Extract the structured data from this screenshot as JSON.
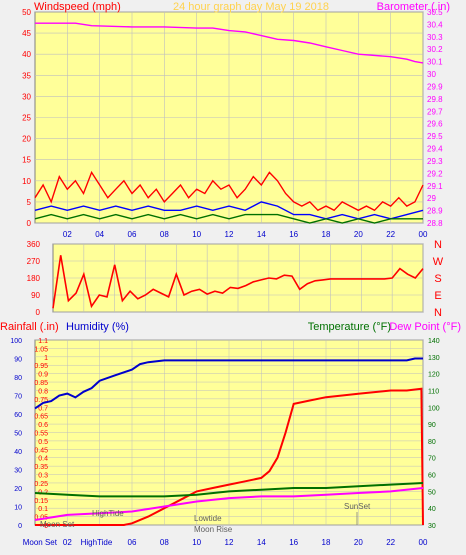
{
  "title": "24 hour graph day   May 19 2018",
  "colors": {
    "frame_bg": "#f0f0f0",
    "plot_bg": "#ffff99",
    "grid": "#bfbfbf",
    "wind_label": "#ff0000",
    "baro_label": "#ff00ff",
    "title": "#ffd24d",
    "humidity_label": "#0000cc",
    "temp_label": "#007000",
    "dew_label": "#ff00ff",
    "bearing_label": "#ff0000"
  },
  "chart_data": [
    {
      "type": "line",
      "name": "wind-barometer",
      "title": "24 hour graph day   May 19 2018",
      "ylabel": "Windspeed (mph)",
      "y2label": "Barometer (.in)",
      "ylim": [
        0,
        50
      ],
      "yticks": [
        "0",
        "5",
        "10",
        "15",
        "20",
        "25",
        "30",
        "35",
        "40",
        "45",
        "50"
      ],
      "y2lim": [
        28.8,
        30.5
      ],
      "y2ticks": [
        "28.8",
        "28.9",
        "29",
        "29.1",
        "29.2",
        "29.3",
        "29.4",
        "29.5",
        "29.6",
        "29.7",
        "29.8",
        "29.9",
        "30",
        "30.1",
        "30.2",
        "30.3",
        "30.4",
        "30.5"
      ],
      "xticks": [
        "02",
        "04",
        "06",
        "08",
        "10",
        "12",
        "14",
        "16",
        "18",
        "20",
        "22",
        "00"
      ],
      "x_hours": [
        0,
        24
      ],
      "series": [
        {
          "color": "#ff00ff",
          "axis": "right",
          "x": [
            0,
            2.5,
            3.5,
            6,
            8,
            10,
            11,
            12,
            13,
            14,
            15,
            16,
            17,
            18,
            19,
            20,
            21,
            22,
            23,
            23.5,
            24
          ],
          "values": [
            30.41,
            30.41,
            30.39,
            30.38,
            30.38,
            30.37,
            30.37,
            30.35,
            30.34,
            30.31,
            30.28,
            30.27,
            30.25,
            30.22,
            30.19,
            30.16,
            30.15,
            30.14,
            30.12,
            30.1,
            30.09
          ]
        },
        {
          "color": "#ff0000",
          "axis": "left",
          "x": [
            0,
            0.5,
            1,
            1.5,
            2,
            2.5,
            3,
            3.5,
            4,
            4.5,
            5,
            5.5,
            6,
            6.5,
            7,
            7.5,
            8,
            8.5,
            9,
            9.5,
            10,
            10.5,
            11,
            11.5,
            12,
            12.5,
            13,
            13.5,
            14,
            14.5,
            15,
            15.5,
            16,
            16.5,
            17,
            17.5,
            18,
            18.5,
            19,
            19.5,
            20,
            20.5,
            21,
            21.5,
            22,
            22.5,
            23,
            23.5,
            24
          ],
          "values": [
            6,
            9,
            5,
            11,
            8,
            10,
            7,
            12,
            9,
            6,
            8,
            10,
            7,
            9,
            6,
            8,
            5,
            7,
            9,
            6,
            8,
            7,
            10,
            8,
            9,
            6,
            8,
            11,
            9,
            12,
            10,
            7,
            5,
            4,
            5,
            3,
            4,
            3,
            5,
            4,
            3,
            4,
            3,
            5,
            4,
            6,
            4,
            5,
            9
          ]
        },
        {
          "color": "#0000ff",
          "axis": "left",
          "x": [
            0,
            1,
            2,
            3,
            4,
            5,
            6,
            7,
            8,
            9,
            10,
            11,
            12,
            13,
            14,
            15,
            16,
            17,
            18,
            19,
            20,
            21,
            22,
            23,
            24
          ],
          "values": [
            3,
            4,
            3,
            4,
            3,
            4,
            3,
            4,
            3,
            3,
            4,
            3,
            4,
            3,
            5,
            4,
            2,
            2,
            1,
            2,
            1,
            2,
            1,
            2,
            3
          ]
        },
        {
          "color": "#007000",
          "axis": "left",
          "x": [
            0,
            1,
            2,
            3,
            4,
            5,
            6,
            7,
            8,
            9,
            10,
            11,
            12,
            13,
            14,
            15,
            16,
            17,
            18,
            19,
            20,
            21,
            22,
            23,
            24
          ],
          "values": [
            1,
            2,
            1,
            2,
            1,
            2,
            1,
            2,
            1,
            2,
            1,
            2,
            1,
            2,
            2,
            2,
            1,
            0,
            1,
            0,
            1,
            0,
            1,
            1,
            1
          ]
        }
      ]
    },
    {
      "type": "line",
      "name": "wind-direction",
      "yticks": [
        "0",
        "90",
        "180",
        "270",
        "360"
      ],
      "ylim": [
        0,
        360
      ],
      "compass": [
        "N",
        "W",
        "S",
        "E",
        "N"
      ],
      "series": [
        {
          "color": "#ff0000",
          "x": [
            0,
            0.5,
            1,
            1.5,
            2,
            2.5,
            3,
            3.5,
            4,
            4.5,
            5,
            5.5,
            6,
            6.5,
            7,
            7.5,
            8,
            8.5,
            9,
            9.5,
            10,
            10.5,
            11,
            11.5,
            12,
            12.5,
            13,
            13.5,
            14,
            14.5,
            15,
            15.5,
            16,
            16.5,
            17,
            17.5,
            18,
            18.5,
            19,
            19.5,
            20,
            20.5,
            21,
            21.5,
            22,
            22.5,
            23,
            23.5,
            24
          ],
          "values": [
            20,
            300,
            60,
            100,
            200,
            30,
            90,
            80,
            250,
            60,
            110,
            70,
            90,
            120,
            100,
            80,
            200,
            90,
            110,
            120,
            95,
            110,
            100,
            130,
            125,
            140,
            160,
            170,
            180,
            175,
            195,
            190,
            120,
            150,
            165,
            170,
            175,
            175,
            175,
            175,
            175,
            175,
            175,
            175,
            180,
            230,
            200,
            180,
            230
          ]
        }
      ]
    },
    {
      "type": "line",
      "name": "rain-humidity-temperature",
      "ylabel": "Rainfall (.in)",
      "ylabel2": "Humidity (%)",
      "y2label": "Temperature (°F)",
      "y2label2": "Dew Point (°F)",
      "ylim": [
        0,
        1.1
      ],
      "yticks": [
        "0",
        "0.05",
        "0.1",
        "0.15",
        "0.2",
        "0.25",
        "0.3",
        "0.35",
        "0.4",
        "0.45",
        "0.5",
        "0.55",
        "0.6",
        "0.65",
        "0.7",
        "0.75",
        "0.8",
        "0.85",
        "0.9",
        "0.95",
        "1",
        "1.05",
        "1.1"
      ],
      "humidity_ticks": [
        "0",
        "10",
        "20",
        "30",
        "40",
        "50",
        "60",
        "70",
        "80",
        "90",
        "100"
      ],
      "y2lim": [
        30,
        140
      ],
      "y2ticks": [
        "30",
        "40",
        "50",
        "60",
        "70",
        "80",
        "90",
        "100",
        "110",
        "120",
        "130",
        "140"
      ],
      "xticks": [
        "Moon Set",
        "02",
        "HighTide",
        "06",
        "08",
        "10",
        "12",
        "14",
        "16",
        "18",
        "20",
        "22",
        "00"
      ],
      "annotations": [
        "Moon Set",
        "HighTide",
        "Lowtide",
        "Moon Rise",
        "SunSet"
      ],
      "series": [
        {
          "color": "#0000cc",
          "axis": "humidity",
          "x": [
            0,
            0.5,
            1,
            1.5,
            2,
            2.5,
            3,
            3.5,
            4,
            5,
            6,
            6.5,
            7,
            8,
            9,
            10,
            12,
            14,
            16,
            18,
            20,
            22,
            23,
            23.5,
            24
          ],
          "values": [
            63,
            66,
            67,
            70,
            71,
            69,
            72,
            74,
            78,
            81,
            84,
            87,
            88,
            89,
            89,
            89,
            89,
            89,
            89,
            89,
            89,
            89,
            89,
            90,
            90
          ]
        },
        {
          "color": "#ff0000",
          "axis": "left",
          "x": [
            0,
            5.5,
            6,
            7,
            8,
            9,
            10,
            11,
            12,
            13,
            14,
            14.5,
            15,
            15.5,
            16,
            17,
            18,
            19,
            20,
            21,
            22,
            23,
            23.9,
            24
          ],
          "values": [
            0,
            0,
            0.01,
            0.05,
            0.1,
            0.15,
            0.2,
            0.22,
            0.24,
            0.26,
            0.28,
            0.32,
            0.4,
            0.55,
            0.72,
            0.74,
            0.76,
            0.77,
            0.78,
            0.79,
            0.8,
            0.8,
            0.81,
            0
          ]
        },
        {
          "color": "#007000",
          "axis": "right",
          "x": [
            0,
            2,
            4,
            6,
            8,
            10,
            12,
            14,
            16,
            18,
            20,
            22,
            24
          ],
          "values": [
            49,
            48,
            47,
            47,
            47,
            48,
            50,
            51,
            52,
            52,
            53,
            54,
            55
          ]
        },
        {
          "color": "#ff00ff",
          "axis": "right",
          "x": [
            0,
            2,
            4,
            6,
            8,
            10,
            12,
            14,
            16,
            18,
            20,
            22,
            24
          ],
          "values": [
            33,
            36,
            37,
            38,
            41,
            44,
            46,
            47,
            47,
            48,
            49,
            50,
            52
          ]
        }
      ]
    }
  ]
}
